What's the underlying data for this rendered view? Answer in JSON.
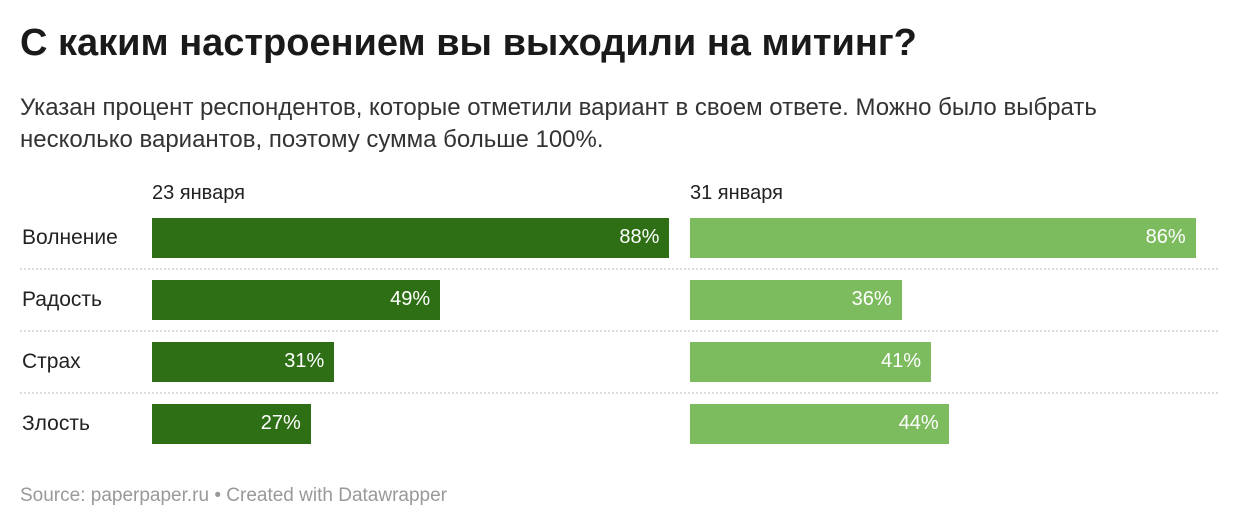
{
  "chart_data": {
    "type": "bar",
    "title": "С каким настроением вы выходили на митинг?",
    "subtitle": "Указан процент респондентов, которые отметили вариант в своем ответе. Можно было выбрать несколько вариантов, поэтому сумма больше 100%.",
    "categories": [
      "Волнение",
      "Радость",
      "Страх",
      "Злость"
    ],
    "series": [
      {
        "name": "23 января",
        "values": [
          88,
          49,
          31,
          27
        ],
        "labels": [
          "88%",
          "49%",
          "31%",
          "27%"
        ],
        "color": "#2e6e14"
      },
      {
        "name": "31 января",
        "values": [
          86,
          36,
          41,
          44
        ],
        "labels": [
          "86%",
          "36%",
          "41%",
          "44%"
        ],
        "color": "#7dbb5f"
      }
    ],
    "xlim": [
      0,
      100
    ],
    "source": "Source: paperpaper.ru • Created with Datawrapper"
  }
}
